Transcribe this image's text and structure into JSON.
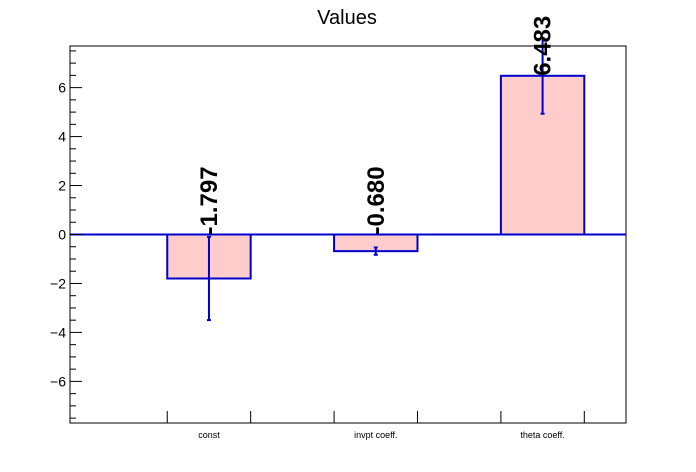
{
  "chart_data": {
    "type": "bar",
    "title": "Values",
    "xlabel": "",
    "ylabel": "",
    "categories": [
      "const",
      "invpt coeff.",
      "theta coeff."
    ],
    "values": [
      -1.797,
      -0.68,
      6.483
    ],
    "value_labels": [
      "-1.797",
      "-0.680",
      "6.483"
    ],
    "errors": [
      1.7,
      0.15,
      1.55
    ],
    "ylim": [
      -7.7,
      7.7
    ],
    "yticks": [
      -6,
      -4,
      -2,
      0,
      2,
      4,
      6
    ],
    "ytick_labels": [
      "−6",
      "−4",
      "−2",
      "0",
      "2",
      "4",
      "6"
    ],
    "grid": false,
    "legend": "none",
    "bar_fill": "#ffcccc",
    "bar_stroke": "#0000cc",
    "axis_color": "#000000"
  }
}
